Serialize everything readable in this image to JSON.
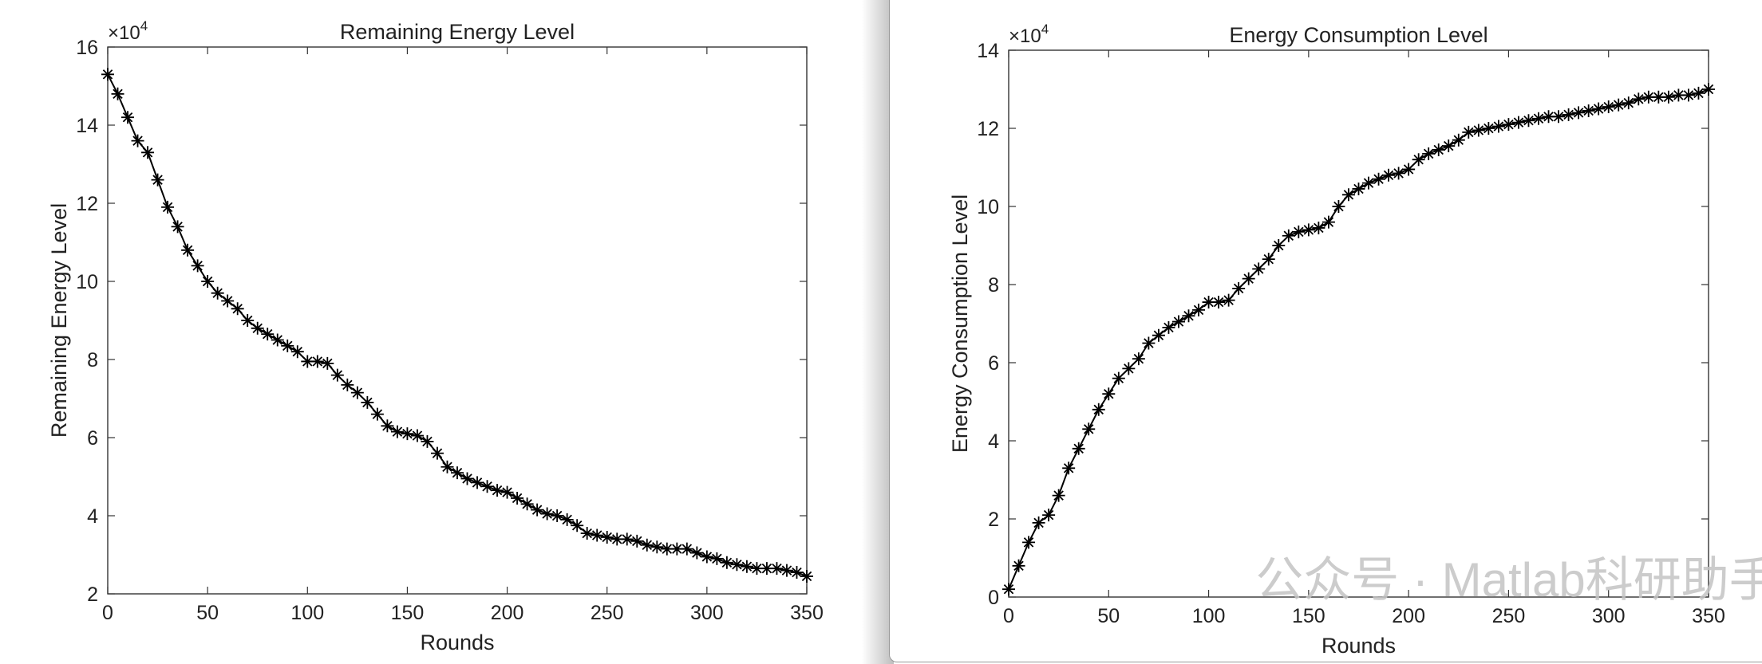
{
  "chart_data": [
    {
      "type": "line",
      "title": "Remaining Energy Level",
      "xlabel": "Rounds",
      "ylabel": "Remaining Energy Level",
      "y_multiplier_base": "×10",
      "y_multiplier_exp": "4",
      "marker": "*",
      "color": "#000000",
      "x": [
        0,
        5,
        10,
        15,
        20,
        25,
        30,
        35,
        40,
        45,
        50,
        55,
        60,
        65,
        70,
        75,
        80,
        85,
        90,
        95,
        100,
        105,
        110,
        115,
        120,
        125,
        130,
        135,
        140,
        145,
        150,
        155,
        160,
        165,
        170,
        175,
        180,
        185,
        190,
        195,
        200,
        205,
        210,
        215,
        220,
        225,
        230,
        235,
        240,
        245,
        250,
        255,
        260,
        265,
        270,
        275,
        280,
        285,
        290,
        295,
        300,
        305,
        310,
        315,
        320,
        325,
        330,
        335,
        340,
        345,
        350
      ],
      "values": [
        15.3,
        14.8,
        14.2,
        13.6,
        13.3,
        12.6,
        11.9,
        11.4,
        10.8,
        10.4,
        10.0,
        9.7,
        9.5,
        9.3,
        9.0,
        8.8,
        8.65,
        8.5,
        8.35,
        8.2,
        7.95,
        7.95,
        7.9,
        7.6,
        7.35,
        7.15,
        6.9,
        6.6,
        6.3,
        6.15,
        6.1,
        6.05,
        5.9,
        5.6,
        5.25,
        5.1,
        4.95,
        4.85,
        4.75,
        4.65,
        4.6,
        4.45,
        4.3,
        4.15,
        4.05,
        4.0,
        3.9,
        3.75,
        3.55,
        3.5,
        3.45,
        3.4,
        3.4,
        3.35,
        3.25,
        3.2,
        3.15,
        3.15,
        3.15,
        3.05,
        2.95,
        2.9,
        2.8,
        2.75,
        2.7,
        2.65,
        2.65,
        2.65,
        2.6,
        2.55,
        2.45
      ],
      "xlim": [
        0,
        350
      ],
      "xticks": [
        0,
        50,
        100,
        150,
        200,
        250,
        300,
        350
      ],
      "ylim": [
        2,
        16
      ],
      "yticks": [
        2,
        4,
        6,
        8,
        10,
        12,
        14,
        16
      ]
    },
    {
      "type": "line",
      "title": "Energy Consumption Level",
      "xlabel": "Rounds",
      "ylabel": "Energy Consumption Level",
      "y_multiplier_base": "×10",
      "y_multiplier_exp": "4",
      "marker": "*",
      "color": "#000000",
      "x": [
        0,
        5,
        10,
        15,
        20,
        25,
        30,
        35,
        40,
        45,
        50,
        55,
        60,
        65,
        70,
        75,
        80,
        85,
        90,
        95,
        100,
        105,
        110,
        115,
        120,
        125,
        130,
        135,
        140,
        145,
        150,
        155,
        160,
        165,
        170,
        175,
        180,
        185,
        190,
        195,
        200,
        205,
        210,
        215,
        220,
        225,
        230,
        235,
        240,
        245,
        250,
        255,
        260,
        265,
        270,
        275,
        280,
        285,
        290,
        295,
        300,
        305,
        310,
        315,
        320,
        325,
        330,
        335,
        340,
        345,
        350
      ],
      "values": [
        0.2,
        0.8,
        1.4,
        1.9,
        2.1,
        2.6,
        3.3,
        3.8,
        4.3,
        4.8,
        5.2,
        5.6,
        5.85,
        6.1,
        6.5,
        6.7,
        6.9,
        7.05,
        7.2,
        7.35,
        7.55,
        7.55,
        7.6,
        7.9,
        8.15,
        8.4,
        8.65,
        9.0,
        9.25,
        9.35,
        9.4,
        9.45,
        9.6,
        10.0,
        10.3,
        10.45,
        10.6,
        10.7,
        10.8,
        10.85,
        10.95,
        11.2,
        11.35,
        11.45,
        11.55,
        11.7,
        11.9,
        11.95,
        12.0,
        12.05,
        12.1,
        12.15,
        12.2,
        12.25,
        12.3,
        12.3,
        12.35,
        12.4,
        12.45,
        12.5,
        12.55,
        12.6,
        12.65,
        12.75,
        12.8,
        12.8,
        12.8,
        12.85,
        12.85,
        12.9,
        13.0
      ],
      "xlim": [
        0,
        350
      ],
      "xticks": [
        0,
        50,
        100,
        150,
        200,
        250,
        300,
        350
      ],
      "ylim": [
        0,
        14
      ],
      "yticks": [
        0,
        2,
        4,
        6,
        8,
        10,
        12,
        14
      ]
    }
  ],
  "watermark": "公众号 · Matlab科研助手"
}
